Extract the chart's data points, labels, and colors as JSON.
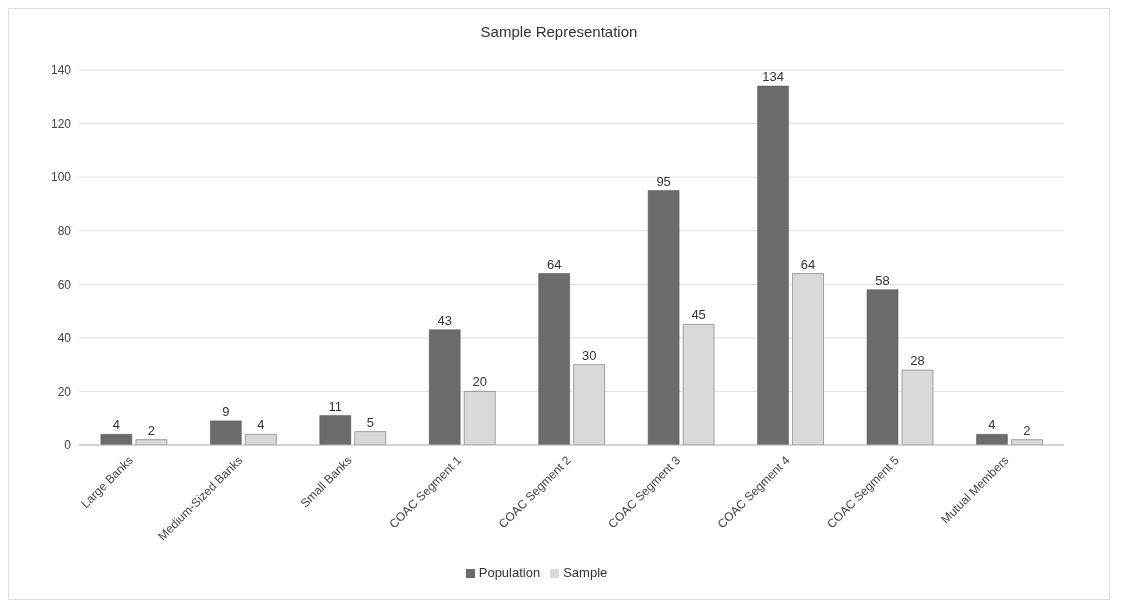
{
  "chart_data": {
    "type": "bar",
    "title": "Sample Representation",
    "categories": [
      "Large Banks",
      "Medium-Sized Banks",
      "Small Banks",
      "COAC Segment 1",
      "COAC Segment 2",
      "COAC Segment 3",
      "COAC Segment 4",
      "COAC Segment 5",
      "Mutual Members"
    ],
    "series": [
      {
        "name": "Population",
        "color": "#6b6b6b",
        "values": [
          4,
          9,
          11,
          43,
          64,
          95,
          134,
          58,
          4
        ]
      },
      {
        "name": "Sample",
        "color": "#d9d9d9",
        "values": [
          2,
          4,
          5,
          20,
          30,
          45,
          64,
          28,
          2
        ]
      }
    ],
    "ylim": [
      0,
      140
    ],
    "yticks": [
      0,
      20,
      40,
      60,
      80,
      100,
      120,
      140
    ],
    "grid": "y",
    "legend": "bottom",
    "data_labels": true
  }
}
